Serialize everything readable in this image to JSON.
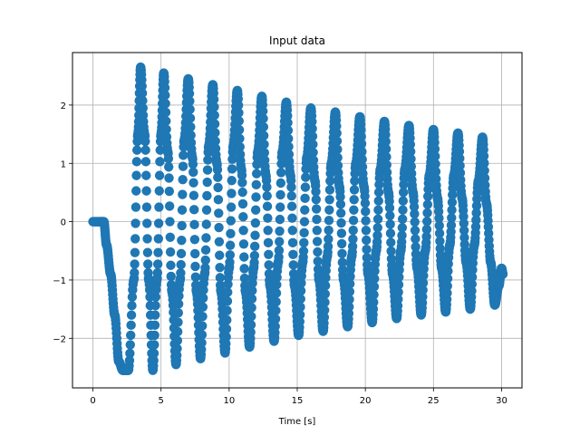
{
  "chart_data": {
    "type": "scatter",
    "title": "Input data",
    "xlabel": "Time [s]",
    "ylabel": "",
    "xlim": [
      -1.5,
      31.5
    ],
    "ylim": [
      -2.85,
      2.9
    ],
    "xticks": [
      0,
      5,
      10,
      15,
      20,
      25,
      30
    ],
    "yticks": [
      -2,
      -1,
      0,
      1,
      2
    ],
    "grid": true,
    "series": [
      {
        "color": "#1f77b4",
        "description_points": {
          "x": [
            0.0,
            0.5,
            0.8,
            1.0,
            1.3,
            1.6,
            1.9,
            2.2,
            2.6,
            3.0,
            3.3,
            3.5,
            3.8,
            4.1,
            4.4,
            4.7,
            5.0,
            5.2,
            5.5,
            5.8,
            6.1,
            6.4,
            6.7,
            7.0,
            7.3,
            7.6,
            7.9,
            8.2,
            8.5,
            8.8,
            9.1,
            9.4,
            9.7,
            10.0,
            10.3,
            10.6,
            10.9,
            11.2,
            11.5,
            11.8,
            12.1,
            12.4,
            12.7,
            13.0,
            13.3,
            13.6,
            13.9,
            14.2,
            14.5,
            14.8,
            15.1,
            15.4,
            15.7,
            16.0,
            16.3,
            16.6,
            16.9,
            17.2,
            17.5,
            17.8,
            18.1,
            18.4,
            18.7,
            19.0,
            19.3,
            19.6,
            19.9,
            20.2,
            20.5,
            20.8,
            21.1,
            21.4,
            21.7,
            22.0,
            22.3,
            22.6,
            22.9,
            23.2,
            23.5,
            23.8,
            24.1,
            24.4,
            24.7,
            25.0,
            25.3,
            25.6,
            25.9,
            26.2,
            26.5,
            26.8,
            27.1,
            27.4,
            27.7,
            28.0,
            28.3,
            28.6,
            28.9,
            29.2,
            29.5,
            29.8,
            30.0,
            30.1
          ],
          "y": [
            0.0,
            0.0,
            0.0,
            -0.4,
            -0.9,
            -1.6,
            -2.4,
            -2.55,
            -2.55,
            -1.0,
            1.5,
            2.65,
            1.5,
            -1.0,
            -2.55,
            -1.0,
            1.5,
            2.55,
            1.2,
            -1.2,
            -2.45,
            -1.0,
            1.4,
            2.45,
            1.1,
            -1.2,
            -2.35,
            -0.9,
            1.3,
            2.35,
            1.0,
            -1.2,
            -2.25,
            -0.8,
            1.3,
            2.25,
            0.9,
            -1.2,
            -2.15,
            -0.8,
            1.2,
            2.15,
            0.8,
            -1.1,
            -2.05,
            -0.7,
            1.2,
            2.05,
            0.8,
            -1.1,
            -1.95,
            -0.7,
            1.1,
            1.95,
            0.7,
            -1.0,
            -1.88,
            -0.6,
            1.0,
            1.88,
            0.6,
            -1.0,
            -1.8,
            -0.6,
            1.0,
            1.8,
            0.6,
            -0.9,
            -1.73,
            -0.5,
            0.9,
            1.72,
            0.5,
            -0.9,
            -1.66,
            -0.5,
            0.9,
            1.65,
            0.5,
            -0.8,
            -1.6,
            -0.5,
            0.8,
            1.58,
            0.4,
            -0.8,
            -1.55,
            -0.4,
            0.8,
            1.52,
            0.4,
            -0.7,
            -1.5,
            -0.4,
            0.7,
            1.45,
            0.3,
            -0.7,
            -1.43,
            -1.1,
            -0.8,
            -0.9
          ]
        }
      }
    ]
  }
}
